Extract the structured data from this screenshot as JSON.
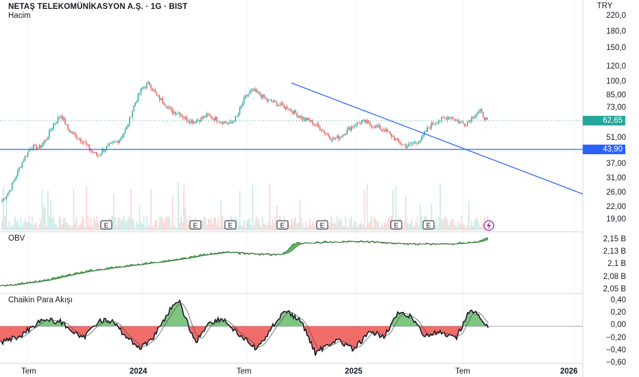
{
  "header": {
    "title": "NETAŞ TELEKOMÜNİKASYON A.Ş. · 1G · BIST",
    "volume_label": "Hacim",
    "currency": "TRY"
  },
  "panels": {
    "obv_title": "OBV",
    "cmf_title": "Chaikin Para Akışı"
  },
  "price_axis": {
    "ticks": [
      "220,0",
      "180,0",
      "150,0",
      "120,0",
      "100,0",
      "85,00",
      "73,00",
      "51,00",
      "37,00",
      "31,00",
      "26,00",
      "22,00",
      "19,00"
    ],
    "last_price": "62,65",
    "support_level": "43,90"
  },
  "obv_axis": {
    "ticks": [
      "2,15 B",
      "2,13 B",
      "2,1 B",
      "2,08 B",
      "2,05 B"
    ]
  },
  "cmf_axis": {
    "ticks": [
      "0,40",
      "0,20",
      "0,00",
      "−0,20",
      "−0,40",
      "−0,60"
    ]
  },
  "time_axis": {
    "ticks": [
      {
        "label": "Tem",
        "bold": false
      },
      {
        "label": "2024",
        "bold": true
      },
      {
        "label": "Tem",
        "bold": false
      },
      {
        "label": "2025",
        "bold": true
      },
      {
        "label": "Tem",
        "bold": false
      },
      {
        "label": "2026",
        "bold": true
      }
    ]
  },
  "earnings_marker": "E",
  "colors": {
    "up": "#26a69a",
    "down": "#ef5350",
    "trend": "#2962ff",
    "price_badge": "#26a69a",
    "support_badge": "#2962ff",
    "obv_up": "#4caf50",
    "obv_down": "#f23645",
    "cmf_pos": "#66bb6a",
    "cmf_neg": "#ef5350"
  },
  "chart_data": {
    "type": "line",
    "series": [
      {
        "values": [
          24,
          27,
          33,
          40,
          46,
          45,
          50,
          60,
          67,
          56,
          52,
          49,
          44,
          41,
          45,
          47,
          50,
          58,
          76,
          92,
          98,
          84,
          78,
          70,
          69,
          64,
          62,
          64,
          67,
          64,
          62,
          60,
          66,
          82,
          90,
          86,
          80,
          78,
          75,
          72,
          68,
          64,
          62,
          58,
          54,
          50,
          52,
          56,
          60,
          62,
          60,
          58,
          56,
          52,
          48,
          46,
          48,
          50,
          58,
          62,
          64,
          66,
          62,
          60,
          66,
          70,
          62
        ]
      }
    ],
    "price_levels": {
      "last": 62.65,
      "support": 43.9
    },
    "trendline": {
      "from": 98,
      "to": 26
    },
    "x_ticks": [
      "Tem",
      "2024",
      "Tem",
      "2025",
      "Tem",
      "2026"
    ]
  }
}
